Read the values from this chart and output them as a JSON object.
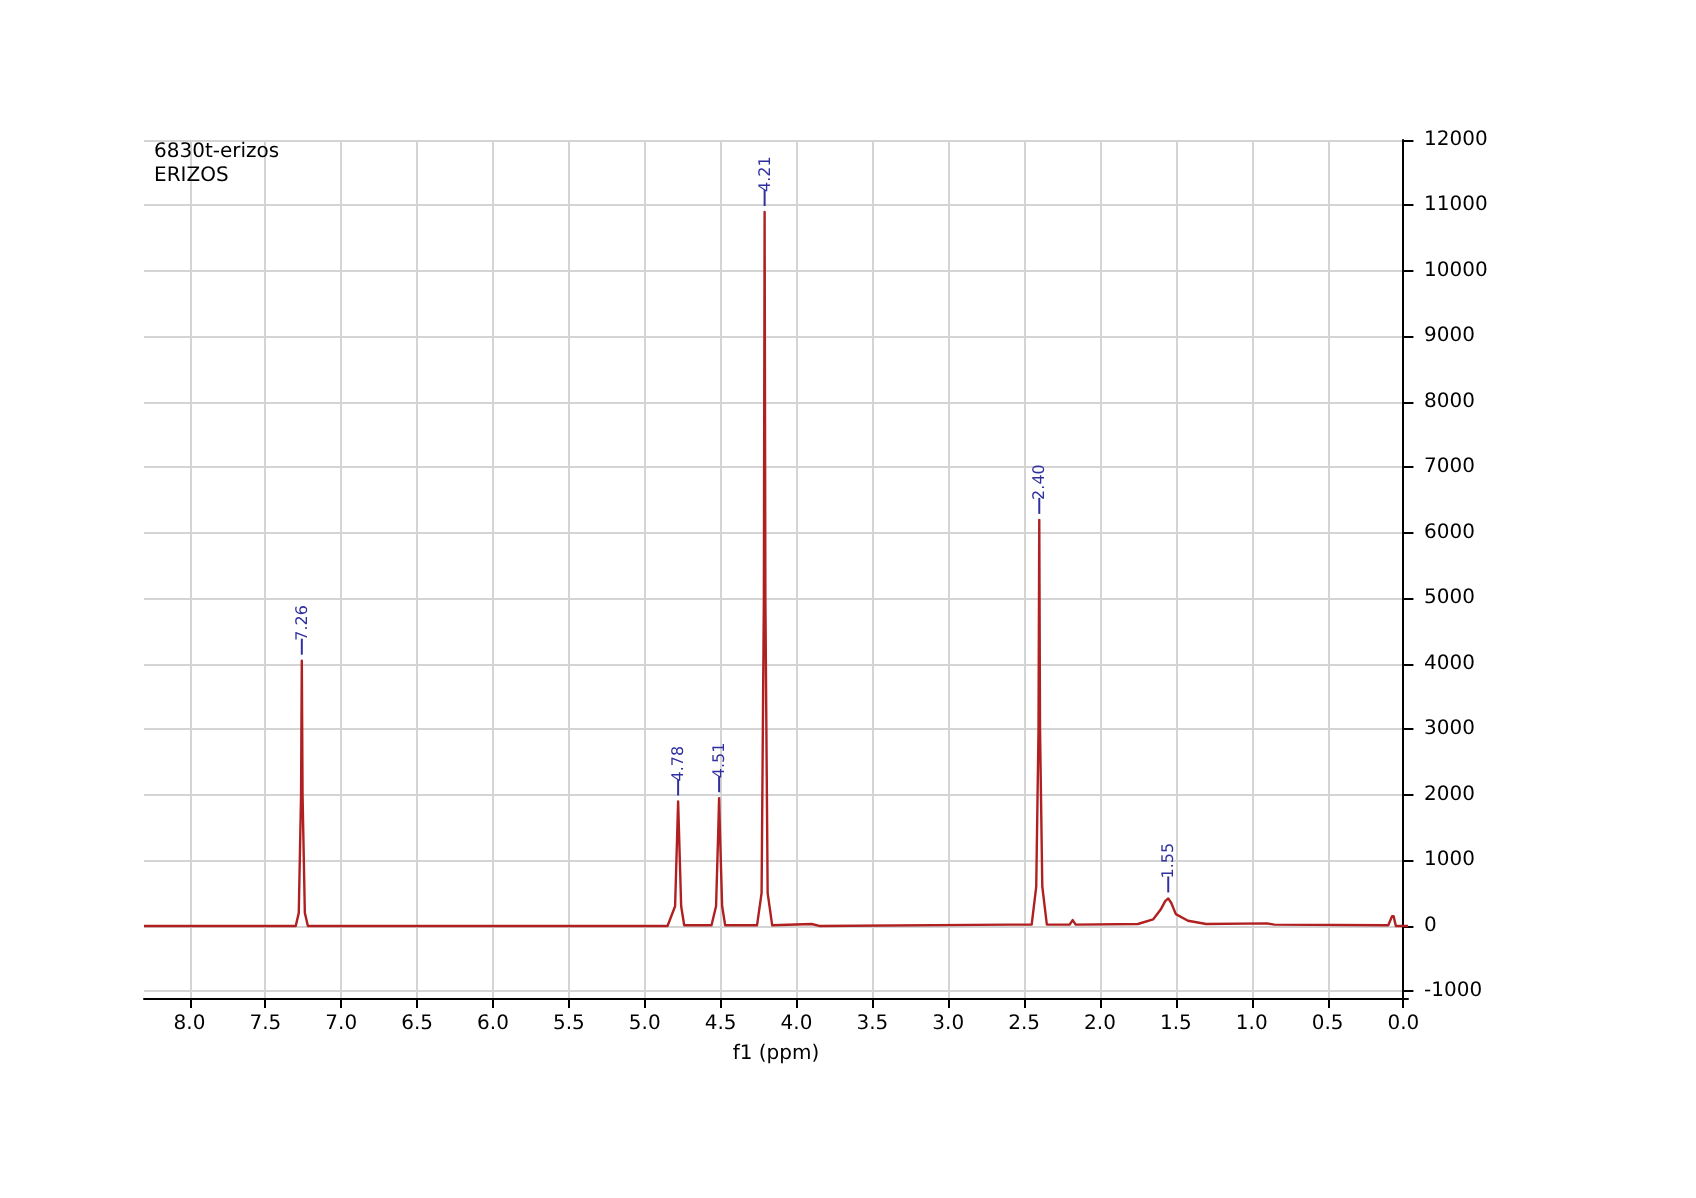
{
  "chart_data": {
    "type": "line",
    "title": "6830t-erizos",
    "subtitle": "ERIZOS",
    "xlabel": "f1 (ppm)",
    "x": [
      8.3,
      7.6,
      7.3,
      7.28,
      7.265,
      7.26,
      7.255,
      7.24,
      7.22,
      6.0,
      4.85,
      4.8,
      4.785,
      4.78,
      4.775,
      4.76,
      4.74,
      4.56,
      4.53,
      4.515,
      4.51,
      4.505,
      4.49,
      4.47,
      4.26,
      4.23,
      4.215,
      4.21,
      4.205,
      4.19,
      4.16,
      3.9,
      3.85,
      2.6,
      2.45,
      2.42,
      2.405,
      2.4,
      2.395,
      2.38,
      2.35,
      2.2,
      2.18,
      2.16,
      1.75,
      1.65,
      1.6,
      1.57,
      1.55,
      1.53,
      1.5,
      1.42,
      1.3,
      0.9,
      0.85,
      0.1,
      0.075,
      0.065,
      0.05,
      -0.03
    ],
    "series": [
      {
        "color": "#b02020",
        "values": [
          0,
          0,
          0,
          200,
          2000,
          4050,
          2000,
          200,
          0,
          0,
          0,
          300,
          1500,
          1900,
          1500,
          300,
          10,
          10,
          300,
          1500,
          1950,
          1500,
          300,
          10,
          10,
          500,
          5000,
          10900,
          5000,
          500,
          10,
          30,
          0,
          20,
          20,
          600,
          3000,
          6200,
          3000,
          600,
          20,
          20,
          90,
          20,
          30,
          100,
          250,
          380,
          420,
          350,
          180,
          80,
          30,
          40,
          20,
          10,
          150,
          150,
          0,
          0
        ]
      }
    ],
    "xlim": [
      8.3,
      -0.03
    ],
    "xticks": [
      {
        "value": 8,
        "label": "8.0"
      },
      {
        "value": 7.5,
        "label": "7.5"
      },
      {
        "value": 7,
        "label": "7.0"
      },
      {
        "value": 6.5,
        "label": "6.5"
      },
      {
        "value": 6,
        "label": "6.0"
      },
      {
        "value": 5.5,
        "label": "5.5"
      },
      {
        "value": 5,
        "label": "5.0"
      },
      {
        "value": 4.5,
        "label": "4.5"
      },
      {
        "value": 4,
        "label": "4.0"
      },
      {
        "value": 3.5,
        "label": "3.5"
      },
      {
        "value": 3,
        "label": "3.0"
      },
      {
        "value": 2.5,
        "label": "2.5"
      },
      {
        "value": 2,
        "label": "2.0"
      },
      {
        "value": 1.5,
        "label": "1.5"
      },
      {
        "value": 1,
        "label": "1.0"
      },
      {
        "value": 0.5,
        "label": "0.5"
      },
      {
        "value": 0,
        "label": "0.0"
      }
    ],
    "ylim": [
      -1100,
      12000
    ],
    "yticks": [
      -1000,
      0,
      1000,
      2000,
      3000,
      4000,
      5000,
      6000,
      7000,
      8000,
      9000,
      10000,
      11000,
      12000
    ],
    "annotations": [
      {
        "text": "7.26",
        "x": 7.26,
        "y": 4050
      },
      {
        "text": "4.78",
        "x": 4.78,
        "y": 1900
      },
      {
        "text": "4.51",
        "x": 4.51,
        "y": 1950
      },
      {
        "text": "4.21",
        "x": 4.21,
        "y": 10900
      },
      {
        "text": "2.40",
        "x": 2.4,
        "y": 6200
      },
      {
        "text": "1.55",
        "x": 1.55,
        "y": 420
      }
    ],
    "grid": true,
    "marker": "none",
    "line_style": "solid"
  }
}
